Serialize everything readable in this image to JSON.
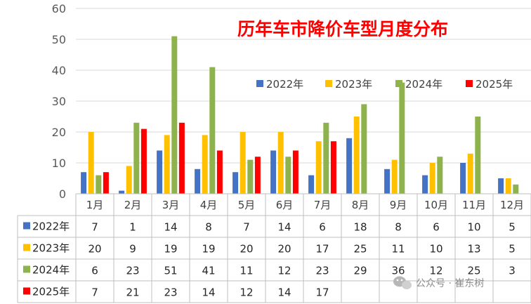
{
  "chart_data": {
    "type": "bar",
    "title": "历年车市降价车型月度分布",
    "categories": [
      "1月",
      "2月",
      "3月",
      "4月",
      "5月",
      "6月",
      "7月",
      "8月",
      "9月",
      "10月",
      "11月",
      "12月"
    ],
    "ylim": [
      0,
      60
    ],
    "yticks": [
      0,
      10,
      20,
      30,
      40,
      50,
      60
    ],
    "legend_position": "top-right",
    "data_table": true,
    "series": [
      {
        "name": "2022年",
        "color": "#4472c4",
        "values": [
          7,
          1,
          14,
          8,
          7,
          14,
          6,
          18,
          8,
          6,
          10,
          5
        ]
      },
      {
        "name": "2023年",
        "color": "#ffc000",
        "values": [
          20,
          9,
          19,
          19,
          20,
          20,
          17,
          25,
          11,
          10,
          13,
          5
        ]
      },
      {
        "name": "2024年",
        "color": "#8fb34c",
        "values": [
          6,
          23,
          51,
          41,
          11,
          12,
          23,
          29,
          36,
          12,
          25,
          3
        ]
      },
      {
        "name": "2025年",
        "color": "#ff0000",
        "values": [
          7,
          21,
          23,
          14,
          12,
          14,
          17,
          null,
          null,
          null,
          null,
          null
        ]
      }
    ]
  },
  "watermark": {
    "icon": "wechat-icon",
    "text": "公众号 · 崔东树"
  }
}
